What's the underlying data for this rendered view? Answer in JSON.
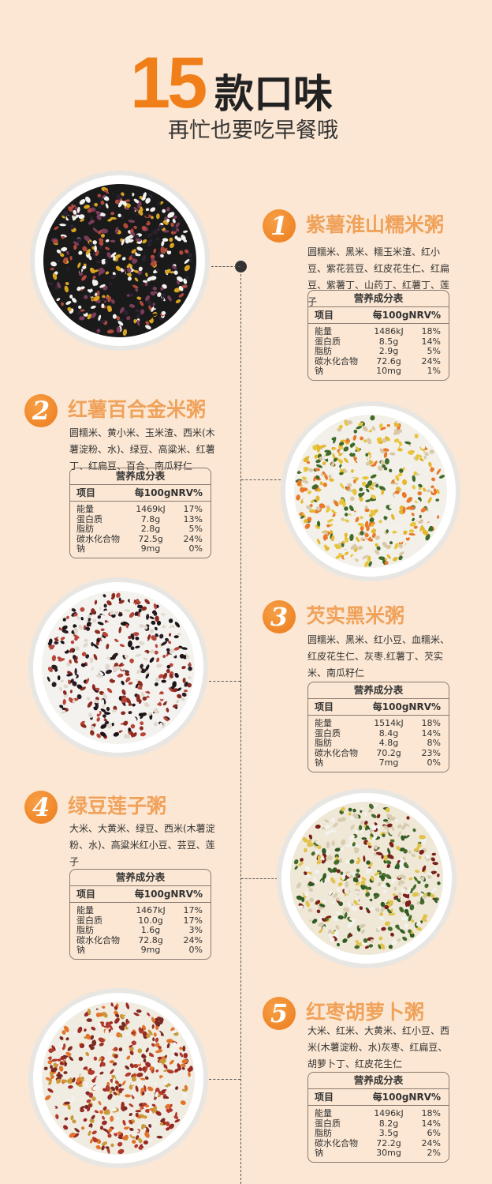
{
  "header": {
    "count": "15",
    "title": "款口味",
    "subtitle": "再忙也要吃早餐哦"
  },
  "colors": {
    "background": "#fbe7d3",
    "accent": "#f07f1a",
    "title_orange": "#f0a25a"
  },
  "table_labels": {
    "title": "营养成分表",
    "col_item": "项目",
    "col_per100g": "每100g",
    "col_nrv": "NRV%"
  },
  "items": [
    {
      "number": "1",
      "name": "紫薯淮山糯米粥",
      "ingredients": "圆糯米、黑米、糯玉米渣、红小豆、紫花芸豆、红皮花生仁、红扁豆、紫薯丁、山药丁、红薯丁、莲子",
      "nutrition": [
        [
          "能量",
          "1486kJ",
          "18%"
        ],
        [
          "蛋白质",
          "8.5g",
          "14%"
        ],
        [
          "脂肪",
          "2.9g",
          "5%"
        ],
        [
          "碳水化合物",
          "72.6g",
          "24%"
        ],
        [
          "钠",
          "10mg",
          "1%"
        ]
      ]
    },
    {
      "number": "2",
      "name": "红薯百合金米粥",
      "ingredients": "圆糯米、黄小米、玉米渣、西米(木薯淀粉、水)、绿豆、高粱米、红薯丁、红扁豆、百合、南瓜籽仁",
      "nutrition": [
        [
          "能量",
          "1469kJ",
          "17%"
        ],
        [
          "蛋白质",
          "7.8g",
          "13%"
        ],
        [
          "脂肪",
          "2.8g",
          "5%"
        ],
        [
          "碳水化合物",
          "72.5g",
          "24%"
        ],
        [
          "钠",
          "9mg",
          "0%"
        ]
      ]
    },
    {
      "number": "3",
      "name": "芡实黑米粥",
      "ingredients": "圆糯米、黑米、红小豆、血糯米、红皮花生仁、灰枣.红薯丁、芡实米、南瓜籽仁",
      "nutrition": [
        [
          "能量",
          "1514kJ",
          "18%"
        ],
        [
          "蛋白质",
          "8.4g",
          "14%"
        ],
        [
          "脂肪",
          "4.8g",
          "8%"
        ],
        [
          "碳水化合物",
          "70.2g",
          "23%"
        ],
        [
          "钠",
          "7mg",
          "0%"
        ]
      ]
    },
    {
      "number": "4",
      "name": "绿豆莲子粥",
      "ingredients": "大米、大黄米、绿豆、西米(木薯淀粉、水)、高粱米红小豆、芸豆、莲子",
      "nutrition": [
        [
          "能量",
          "1467kJ",
          "17%"
        ],
        [
          "蛋白质",
          "10.0g",
          "17%"
        ],
        [
          "脂肪",
          "1.6g",
          "3%"
        ],
        [
          "碳水化合物",
          "72.8g",
          "24%"
        ],
        [
          "钠",
          "9mg",
          "0%"
        ]
      ]
    },
    {
      "number": "5",
      "name": "红枣胡萝卜粥",
      "ingredients": "大米、红米、大黄米、红小豆、西米(木薯淀粉、水)灰枣、红扁豆、胡萝卜丁、红皮花生仁",
      "nutrition": [
        [
          "能量",
          "1496kJ",
          "18%"
        ],
        [
          "蛋白质",
          "8.2g",
          "14%"
        ],
        [
          "脂肪",
          "3.5g",
          "6%"
        ],
        [
          "碳水化合物",
          "72.2g",
          "24%"
        ],
        [
          "钠",
          "30mg",
          "2%"
        ]
      ]
    }
  ]
}
